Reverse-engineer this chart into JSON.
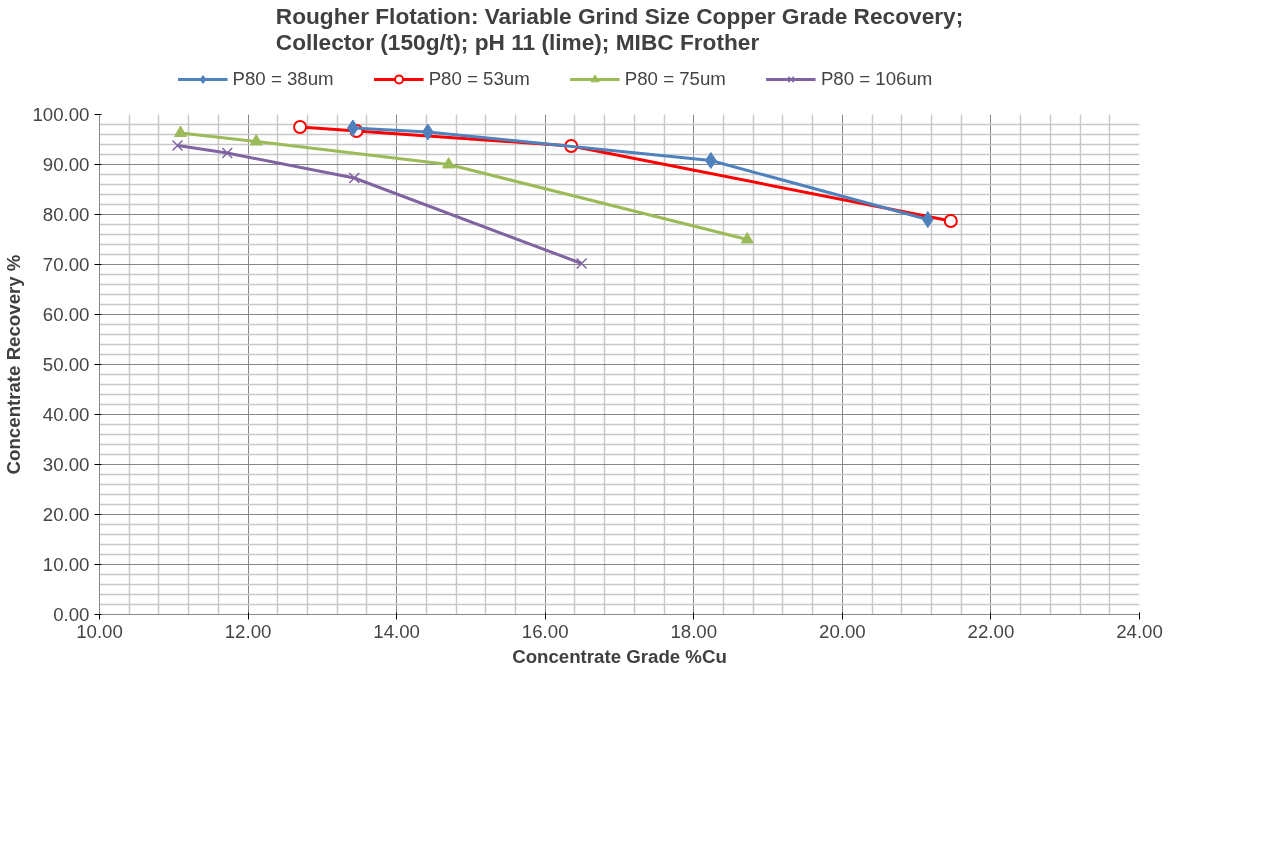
{
  "chart_data": {
    "type": "line",
    "title": "Rougher Flotation: Variable Grind Size Copper Grade Recovery;\nCollector (150g/t);  pH 11 (lime); MIBC Frother",
    "xlabel": "Concentrate Grade %Cu",
    "ylabel": "Concentrate Recovery %",
    "xlim": [
      10,
      24
    ],
    "ylim": [
      0,
      100
    ],
    "xticks": [
      {
        "value": 10,
        "label": "10.00"
      },
      {
        "value": 12,
        "label": "12.00"
      },
      {
        "value": 14,
        "label": "14.00"
      },
      {
        "value": 16,
        "label": "16.00"
      },
      {
        "value": 18,
        "label": "18.00"
      },
      {
        "value": 20,
        "label": "20.00"
      },
      {
        "value": 22,
        "label": "22.00"
      },
      {
        "value": 24,
        "label": "24.00"
      }
    ],
    "yticks": [
      {
        "value": 0,
        "label": "0.00"
      },
      {
        "value": 10,
        "label": "10.00"
      },
      {
        "value": 20,
        "label": "20.00"
      },
      {
        "value": 30,
        "label": "30.00"
      },
      {
        "value": 40,
        "label": "40.00"
      },
      {
        "value": 50,
        "label": "50.00"
      },
      {
        "value": 60,
        "label": "60.00"
      },
      {
        "value": 70,
        "label": "70.00"
      },
      {
        "value": 80,
        "label": "80.00"
      },
      {
        "value": 90,
        "label": "90.00"
      },
      {
        "value": 100,
        "label": "100.00"
      }
    ],
    "grid": true,
    "legend": "top",
    "series": [
      {
        "name": "P80 = 38um",
        "color": "#4f81bd",
        "marker": "diamond",
        "x": [
          13.41,
          14.42,
          18.23,
          21.15
        ],
        "values": [
          97.3,
          96.5,
          90.8,
          79.0
        ]
      },
      {
        "name": "P80 = 53um",
        "color": "#ff0000",
        "marker": "circle",
        "x": [
          12.7,
          13.46,
          16.35,
          21.46
        ],
        "values": [
          97.5,
          96.7,
          93.7,
          78.7
        ]
      },
      {
        "name": "P80 = 75um",
        "color": "#9bbb59",
        "marker": "triangle",
        "x": [
          11.09,
          12.11,
          14.7,
          18.72
        ],
        "values": [
          96.3,
          94.6,
          90.0,
          75.0
        ]
      },
      {
        "name": "P80 = 106um",
        "color": "#8064a2",
        "marker": "cross",
        "x": [
          11.05,
          11.72,
          13.43,
          16.49
        ],
        "values": [
          93.8,
          92.3,
          87.3,
          70.2
        ]
      }
    ]
  }
}
